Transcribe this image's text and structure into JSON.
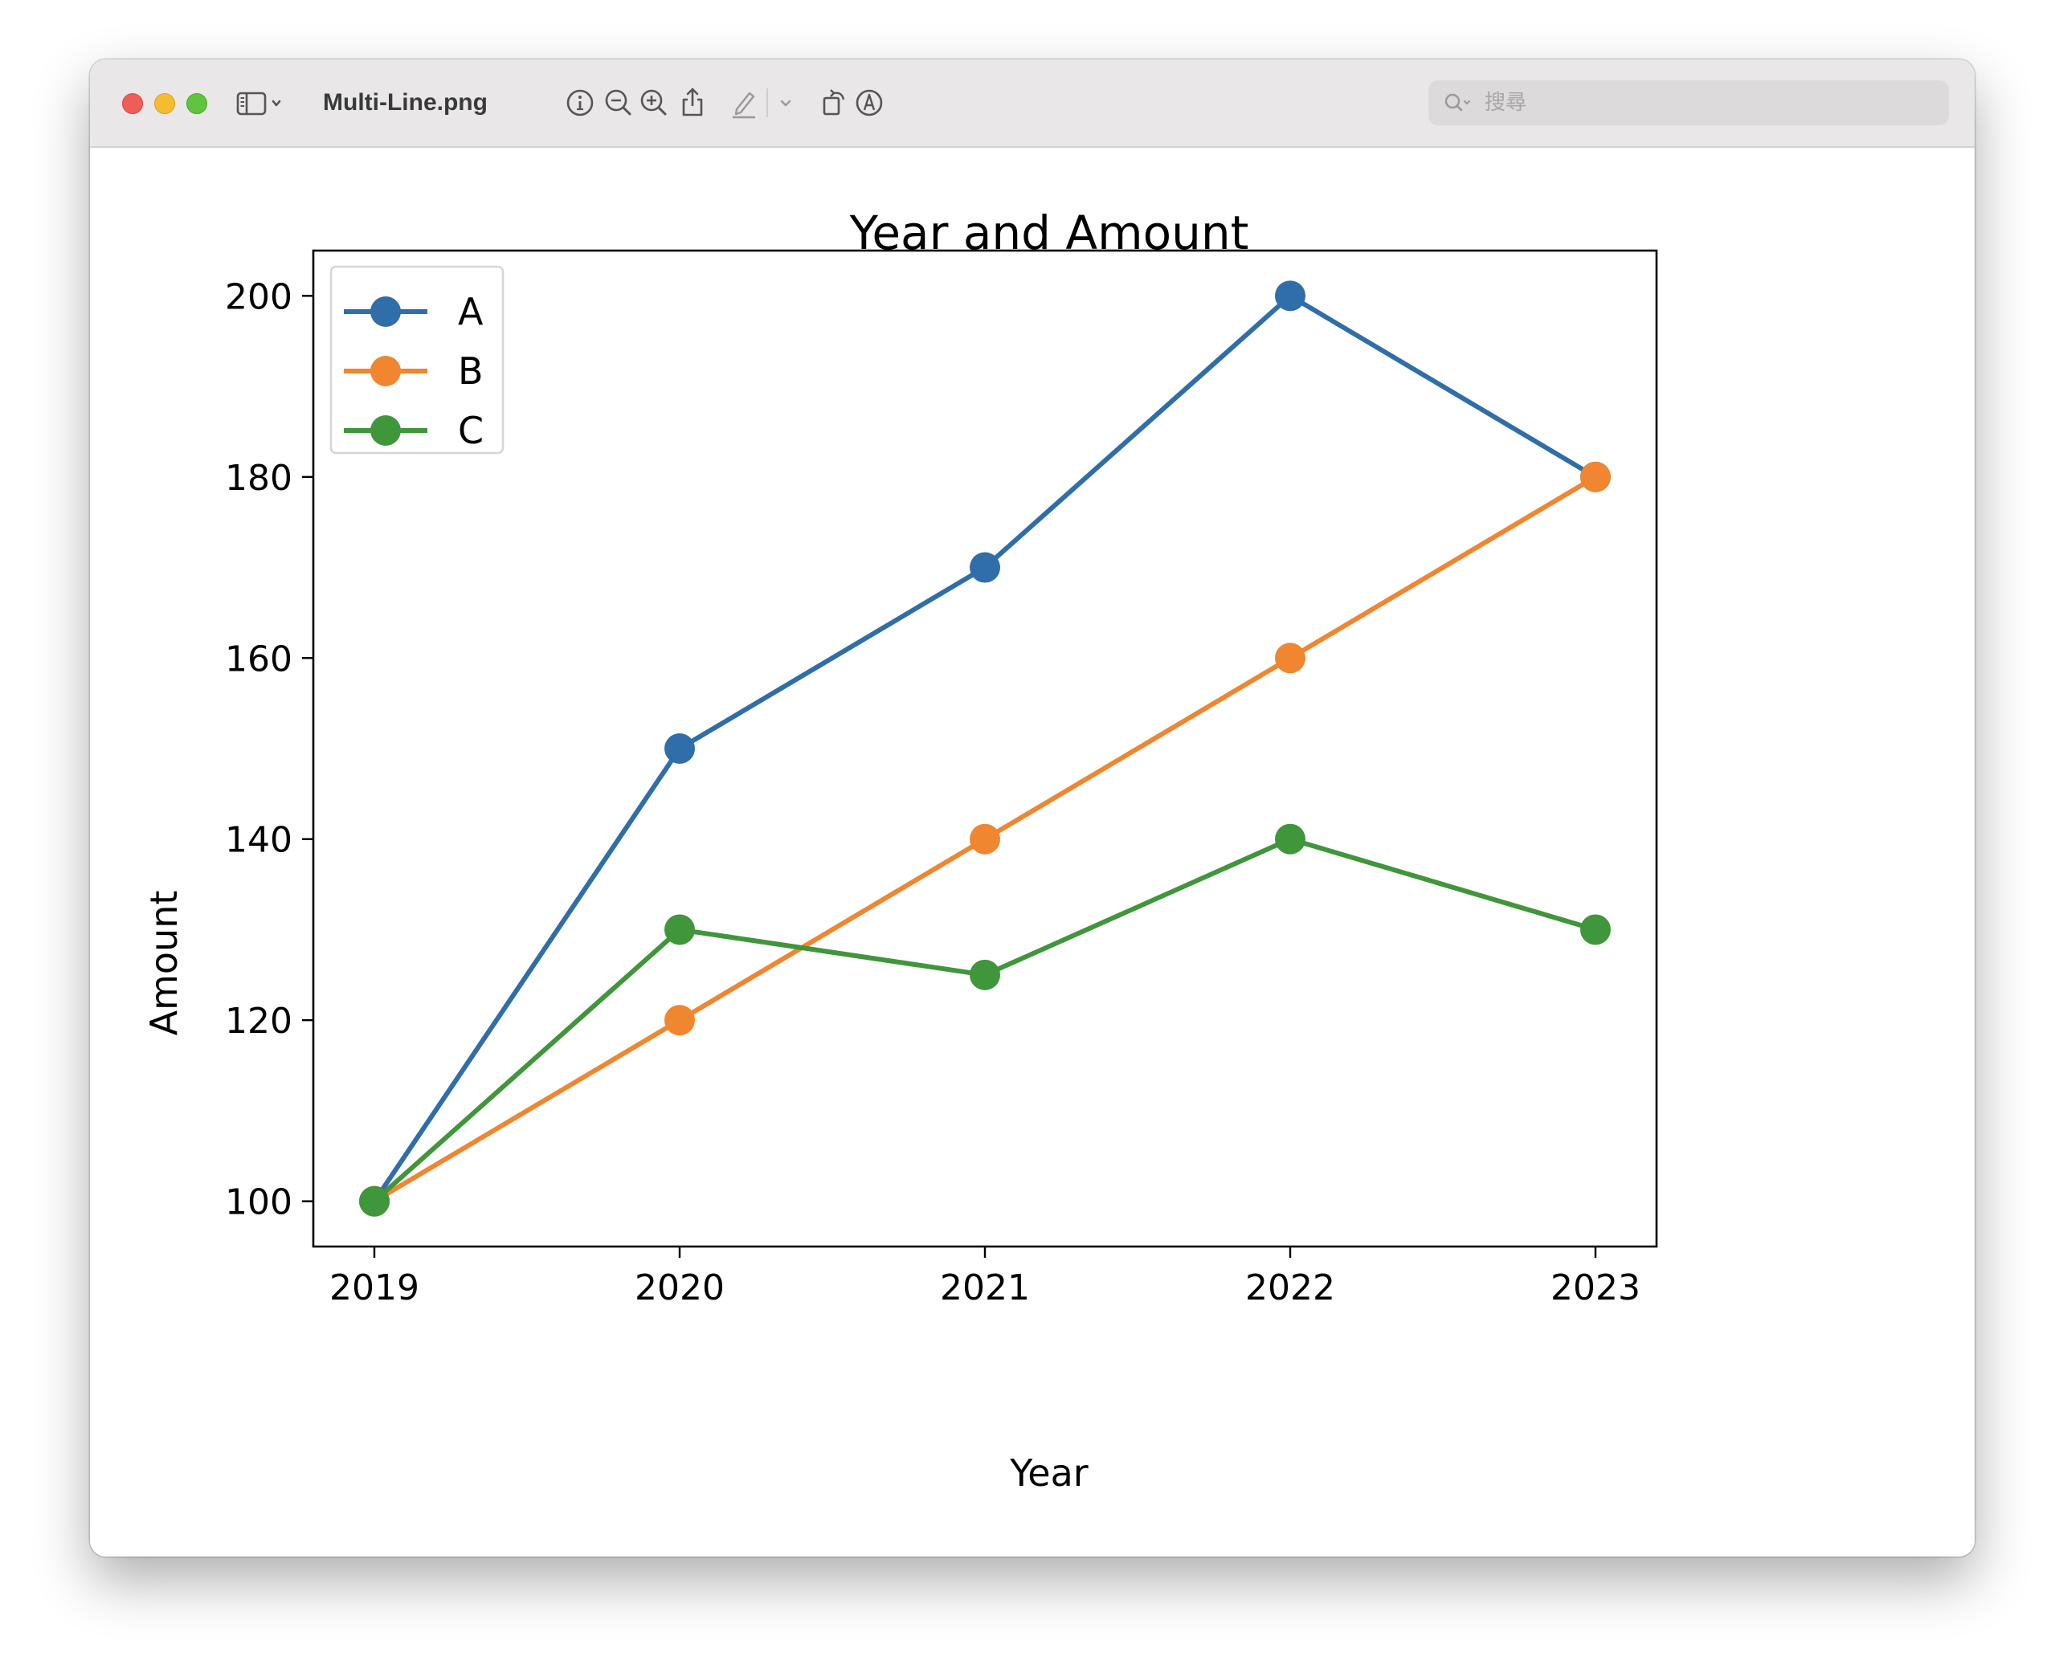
{
  "window": {
    "title": "Multi-Line.png",
    "search_placeholder": "搜尋"
  },
  "toolbar": {
    "icons": [
      "sidebar-icon",
      "chevron-down-icon",
      "info-icon",
      "zoom-out-icon",
      "zoom-in-icon",
      "share-icon",
      "markup-pen-icon",
      "chevron-down-icon",
      "rotate-icon",
      "annotate-icon",
      "search-icon"
    ]
  },
  "chart_data": {
    "type": "line",
    "title": "Year and Amount",
    "xlabel": "Year",
    "ylabel": "Amount",
    "x": [
      2019,
      2020,
      2021,
      2022,
      2023
    ],
    "xticks": [
      "2019",
      "2020",
      "2021",
      "2022",
      "2023"
    ],
    "yticks": [
      100,
      120,
      140,
      160,
      180,
      200
    ],
    "ylim": [
      95,
      205
    ],
    "xlim": [
      2018.8,
      2023.2
    ],
    "grid": false,
    "legend_position": "top-left",
    "markers": "circle",
    "series": [
      {
        "name": "A",
        "color": "#2f6ea8",
        "values": [
          100,
          150,
          170,
          200,
          180
        ]
      },
      {
        "name": "B",
        "color": "#f0862f",
        "values": [
          100,
          120,
          140,
          160,
          180
        ]
      },
      {
        "name": "C",
        "color": "#40963a",
        "values": [
          100,
          130,
          125,
          140,
          130
        ]
      }
    ]
  }
}
